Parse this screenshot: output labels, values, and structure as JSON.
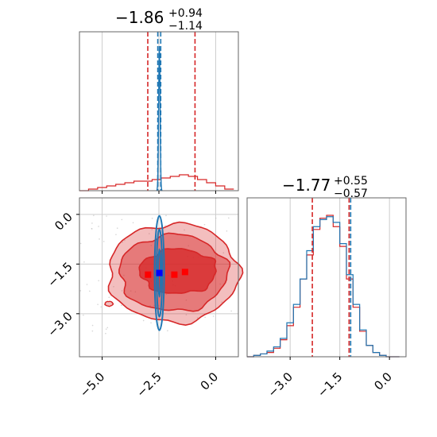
{
  "chart_data": [
    {
      "type": "histogram",
      "panel": "x-marginal",
      "title": {
        "value": "−1.86",
        "plus": "+0.94",
        "minus": "−1.14"
      },
      "xlim": [
        -6.0,
        1.0
      ],
      "quantile_lines_red": [
        -2.99,
        -0.91
      ],
      "quantile_lines_blue": [
        -2.55,
        -2.42
      ],
      "blue_peak": -2.48,
      "red_hist": {
        "x": [
          -5.8,
          -5.4,
          -5.0,
          -4.6,
          -4.2,
          -3.8,
          -3.4,
          -3.0,
          -2.6,
          -2.2,
          -1.8,
          -1.4,
          -1.0,
          -0.6,
          -0.2,
          0.2,
          0.6
        ],
        "y": [
          0.0,
          0.01,
          0.02,
          0.03,
          0.04,
          0.05,
          0.06,
          0.06,
          0.07,
          0.08,
          0.09,
          0.1,
          0.09,
          0.07,
          0.05,
          0.03,
          0.01
        ]
      }
    },
    {
      "type": "histogram",
      "panel": "y-marginal",
      "title": {
        "value": "−1.77",
        "plus": "+0.55",
        "minus": "−0.57"
      },
      "xlim": [
        -4.3,
        0.5
      ],
      "xticks": [
        "−3.0",
        "−1.5",
        "0.0"
      ],
      "tick_values": [
        -3.0,
        -1.5,
        0.0
      ],
      "quantile_lines_red": [
        -2.33,
        -1.22
      ],
      "quantile_lines_blue": [
        -1.22
      ],
      "series": [
        {
          "color": "#d62728",
          "x": [
            -4.2,
            -4.0,
            -3.8,
            -3.6,
            -3.4,
            -3.2,
            -3.0,
            -2.8,
            -2.6,
            -2.4,
            -2.2,
            -2.0,
            -1.8,
            -1.6,
            -1.4,
            -1.2,
            -1.0,
            -0.8,
            -0.6,
            -0.4,
            -0.2,
            0.0,
            0.2
          ],
          "y": [
            0.0,
            0.01,
            0.02,
            0.03,
            0.06,
            0.12,
            0.22,
            0.35,
            0.55,
            0.72,
            0.9,
            0.98,
            1.0,
            0.92,
            0.78,
            0.55,
            0.35,
            0.18,
            0.08,
            0.03,
            0.01,
            0.0,
            0.0
          ]
        },
        {
          "color": "#1f77b4",
          "x": [
            -4.2,
            -4.0,
            -3.8,
            -3.6,
            -3.4,
            -3.2,
            -3.0,
            -2.8,
            -2.6,
            -2.4,
            -2.2,
            -2.0,
            -1.8,
            -1.6,
            -1.4,
            -1.2,
            -1.0,
            -0.8,
            -0.6,
            -0.4,
            -0.2,
            0.0,
            0.2
          ],
          "y": [
            0.0,
            0.01,
            0.02,
            0.04,
            0.07,
            0.13,
            0.24,
            0.37,
            0.55,
            0.75,
            0.92,
            0.97,
            0.99,
            0.95,
            0.8,
            0.58,
            0.37,
            0.19,
            0.08,
            0.03,
            0.01,
            0.0,
            0.0
          ]
        }
      ]
    },
    {
      "type": "contour",
      "panel": "joint",
      "xlim": [
        -6.0,
        1.0
      ],
      "ylim": [
        -4.3,
        0.5
      ],
      "xticks": [
        "−5.0",
        "−2.5",
        "0.0"
      ],
      "xtick_values": [
        -5.0,
        -2.5,
        0.0
      ],
      "yticks": [
        "0.0",
        "−1.5",
        "−3.0"
      ],
      "ytick_values": [
        0.0,
        -1.5,
        -3.0
      ],
      "red_center": [
        -1.86,
        -1.77
      ],
      "blue_center": [
        -2.48,
        -1.77
      ],
      "red_markers": [
        [
          -2.98,
          -1.82
        ],
        [
          -1.82,
          -1.82
        ],
        [
          -1.35,
          -1.74
        ]
      ],
      "blue_marker": [
        -2.48,
        -1.77
      ],
      "colors": {
        "red": "#d62728",
        "blue": "#1f77b4",
        "grid": "#cccccc"
      }
    }
  ]
}
